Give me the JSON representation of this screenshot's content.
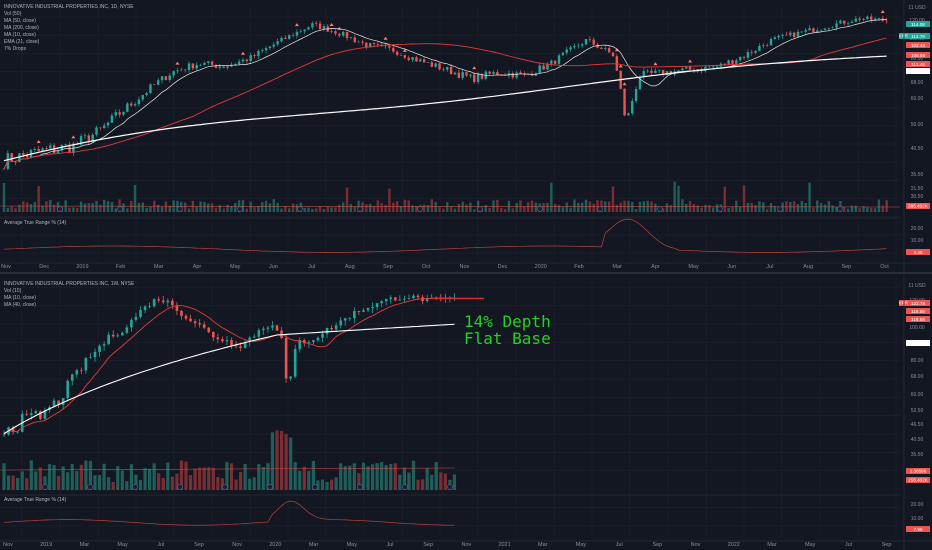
{
  "chart_data": [
    {
      "type": "candlestick",
      "panel": "top",
      "symbol_header": "INNOVATIVE INDUSTRIAL PROPERTIES INC, 1D, NYSE",
      "indicator_labels": [
        "Vol (50)",
        "MA (50, close)",
        "MA (200, close)",
        "MA (10, close)",
        "EMA (21, close)",
        "7% Drops"
      ],
      "currency": "USD",
      "y_ticks": [
        "11 USD",
        "120.00",
        "100.00",
        "80.00",
        "68.00",
        "60.00",
        "50.00",
        "40.50",
        "35.50",
        "31.50",
        "30.50"
      ],
      "x_ticks": [
        "Nov",
        "Dec",
        "2019",
        "Feb",
        "Mar",
        "Apr",
        "May",
        "Jun",
        "Jul",
        "Aug",
        "Sep",
        "Oct",
        "Nov",
        "Dec",
        "2020",
        "Feb",
        "Mar",
        "Apr",
        "May",
        "Jun",
        "Jul",
        "Aug",
        "Sep",
        "Oct"
      ],
      "price_tags": [
        {
          "text": "114.08",
          "color": "#26a69a"
        },
        {
          "text": "113.78",
          "color": "#26a69a"
        },
        {
          "text": "102.48",
          "color": "#ef5350"
        },
        {
          "text": "106.68",
          "color": "#ef5350"
        },
        {
          "text": "113.48",
          "color": "#ef5350"
        },
        {
          "text": "89.17",
          "color": "#ffffff"
        }
      ],
      "symbol_tag": "IIPR",
      "volume_tag": "395.402K",
      "atr_label": "Average True Range % (14)",
      "atr_ticks": [
        "20.00",
        "10.00",
        "4.48"
      ],
      "approx_close_path": [
        {
          "x": "Nov 2018",
          "y": 39
        },
        {
          "x": "Dec 2018",
          "y": 42
        },
        {
          "x": "Jan 2019",
          "y": 48
        },
        {
          "x": "Feb 2019",
          "y": 64
        },
        {
          "x": "Mar 2019",
          "y": 80
        },
        {
          "x": "Apr 2019",
          "y": 86
        },
        {
          "x": "May 2019",
          "y": 88
        },
        {
          "x": "Jun 2019",
          "y": 102
        },
        {
          "x": "Jul 2019",
          "y": 118
        },
        {
          "x": "Aug 2019",
          "y": 110
        },
        {
          "x": "Sep 2019",
          "y": 96
        },
        {
          "x": "Oct 2019",
          "y": 86
        },
        {
          "x": "Nov 2019",
          "y": 76
        },
        {
          "x": "Dec 2019",
          "y": 78
        },
        {
          "x": "Jan 2020",
          "y": 84
        },
        {
          "x": "Feb 2020",
          "y": 104
        },
        {
          "x": "Mar 2020",
          "y": 60
        },
        {
          "x": "Apr 2020",
          "y": 80
        },
        {
          "x": "May 2020",
          "y": 82
        },
        {
          "x": "Jun 2020",
          "y": 84
        },
        {
          "x": "Jul 2020",
          "y": 104
        },
        {
          "x": "Aug 2020",
          "y": 112
        },
        {
          "x": "Sep 2020",
          "y": 122
        }
      ]
    },
    {
      "type": "candlestick",
      "panel": "bottom",
      "symbol_header": "INNOVATIVE INDUSTRIAL PROPERTIES INC, 1W, NYSE",
      "indicator_labels": [
        "Vol (10)",
        "MA (10, close)",
        "MA (40, close)"
      ],
      "currency": "USD",
      "y_ticks": [
        "11 USD",
        "120.00",
        "100.00",
        "90.00",
        "80.00",
        "68.00",
        "60.00",
        "52.50",
        "46.50",
        "40.50",
        "35.50",
        "31.50"
      ],
      "x_ticks": [
        "Nov",
        "2019",
        "Mar",
        "May",
        "Jul",
        "Sep",
        "Nov",
        "2020",
        "Mar",
        "May",
        "Jul",
        "Sep",
        "Nov",
        "2021",
        "Mar",
        "May",
        "Jul",
        "Sep",
        "Nov",
        "2022",
        "Mar",
        "May",
        "Jul",
        "Sep"
      ],
      "price_tags": [
        {
          "text": "122.78",
          "color": "#ef5350"
        },
        {
          "text": "116.58",
          "color": "#ef5350"
        },
        {
          "text": "118.58",
          "color": "#ef5350"
        },
        {
          "text": "90.58",
          "color": "#ffffff"
        }
      ],
      "symbol_tag": "IIPR",
      "volume_tag": "256.402K",
      "volume_tag_2": "1.38596",
      "atr_label": "Average True Range % (14)",
      "atr_ticks": [
        "20.00",
        "10.00",
        "7.99"
      ],
      "annotation": [
        "14% Depth",
        "Flat Base"
      ]
    }
  ]
}
